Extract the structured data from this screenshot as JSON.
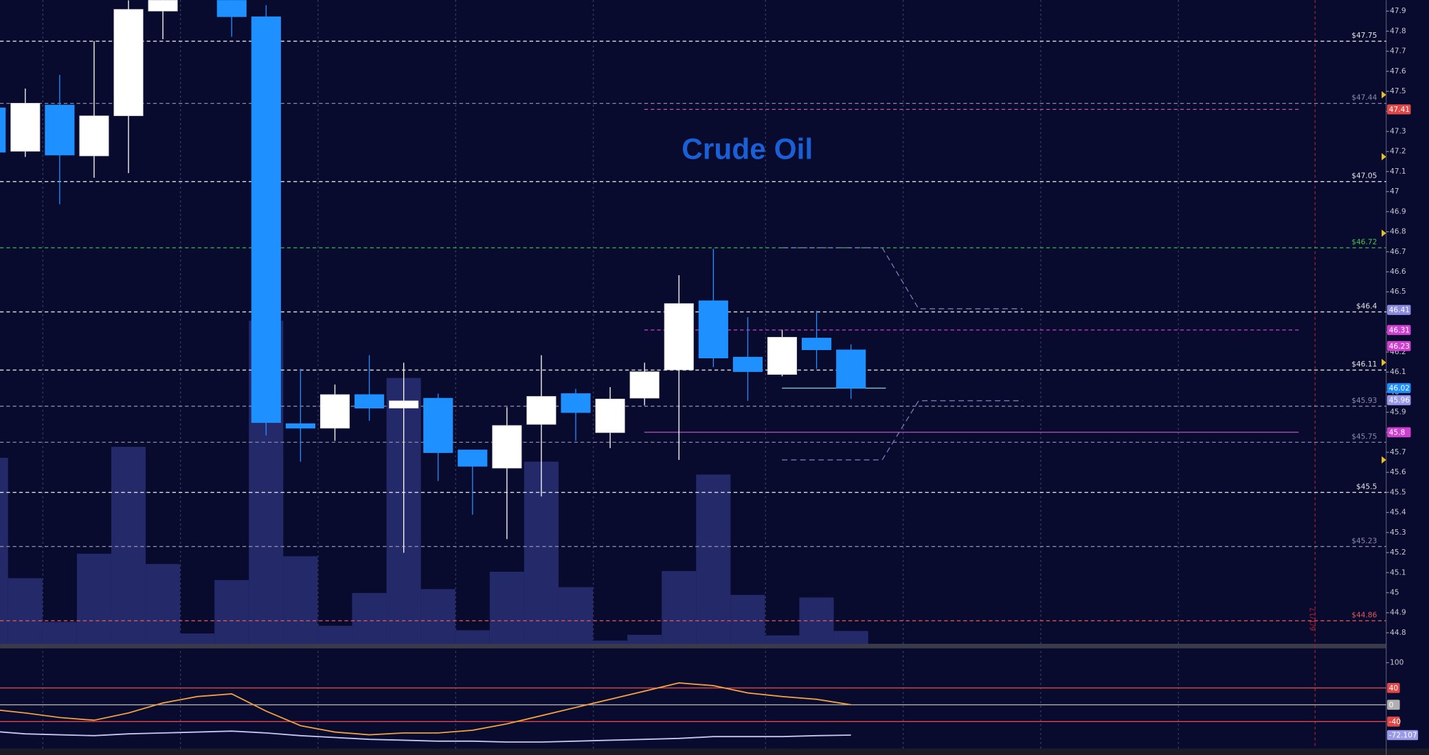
{
  "chart_data": {
    "type": "candlestick",
    "title": "Crude Oil",
    "categories": [
      null,
      null,
      null,
      null,
      null,
      null,
      null,
      null,
      null,
      null,
      null,
      null,
      null,
      null,
      null,
      null,
      null,
      null,
      null,
      null,
      null,
      null,
      null,
      null,
      null,
      null
    ],
    "open": [
      47.418,
      47.201,
      47.432,
      47.178,
      47.378,
      47.9,
      null,
      48.0,
      47.872,
      45.843,
      45.82,
      45.988,
      45.92,
      45.97,
      45.712,
      45.621,
      45.839,
      45.993,
      45.798,
      45.97,
      46.111,
      46.456,
      46.175,
      46.088,
      46.27,
      46.211
    ],
    "high": [
      47.42,
      47.514,
      47.582,
      47.75,
      47.954,
      48.05,
      null,
      48.05,
      47.93,
      46.116,
      46.038,
      46.184,
      46.147,
      45.993,
      45.712,
      45.925,
      46.184,
      46.016,
      46.025,
      46.147,
      46.583,
      46.715,
      46.374,
      46.311,
      46.406,
      46.238
    ],
    "low": [
      47.19,
      47.173,
      46.937,
      47.069,
      47.092,
      47.76,
      null,
      47.772,
      45.784,
      45.653,
      45.757,
      45.857,
      45.199,
      45.557,
      45.389,
      45.267,
      45.48,
      45.757,
      45.721,
      45.934,
      45.662,
      46.125,
      45.957,
      46.079,
      46.116,
      45.966
    ],
    "close": [
      47.196,
      47.441,
      47.182,
      47.378,
      47.909,
      48.0,
      null,
      47.872,
      45.848,
      45.82,
      45.988,
      45.92,
      45.957,
      45.698,
      45.63,
      45.834,
      45.979,
      45.898,
      45.966,
      46.102,
      46.442,
      46.17,
      46.102,
      46.274,
      46.211,
      46.02
    ],
    "up_color": "#ffffff",
    "down_color": "#1e90ff",
    "ylim": [
      44.745,
      47.955
    ],
    "yticks": [
      44.8,
      44.9,
      45,
      45.1,
      45.2,
      45.3,
      45.4,
      45.5,
      45.6,
      45.7,
      45.8,
      45.9,
      46,
      46.1,
      46.2,
      46.3,
      46.4,
      46.5,
      46.6,
      46.7,
      46.8,
      46.9,
      47,
      47.1,
      47.2,
      47.3,
      47.4,
      47.5,
      47.6,
      47.7,
      47.8,
      47.9
    ],
    "grid": true,
    "volume": {
      "ylim": [
        0,
        100
      ],
      "color": "#24296a",
      "values": [
        28.9,
        10.2,
        3.4,
        14.0,
        30.6,
        12.4,
        1.6,
        9.9,
        50.2,
        13.6,
        2.8,
        7.9,
        41.3,
        8.5,
        2.1,
        11.2,
        28.3,
        8.8,
        0.5,
        1.4,
        11.3,
        26.3,
        7.6,
        1.3,
        7.2,
        2.0
      ]
    },
    "levels": [
      {
        "value": 47.75,
        "label": "$47.75",
        "color": "#e6e6e6"
      },
      {
        "value": 47.44,
        "label": "$47.44",
        "color": "#8c8ca8"
      },
      {
        "value": 47.05,
        "label": "$47.05",
        "color": "#e6e6e6"
      },
      {
        "value": 46.72,
        "label": "$46.72",
        "color": "#3fbf4f"
      },
      {
        "value": 46.4,
        "label": "$46.4",
        "color": "#e6e6e6"
      },
      {
        "value": 46.11,
        "label": "$46.11",
        "color": "#e6e6e6"
      },
      {
        "value": 45.93,
        "label": "$45.93",
        "color": "#8c8ca8"
      },
      {
        "value": 45.75,
        "label": "$45.75",
        "color": "#8c8ca8"
      },
      {
        "value": 45.5,
        "label": "$45.5",
        "color": "#e6e6e6"
      },
      {
        "value": 45.23,
        "label": "$45.23",
        "color": "#8c8ca8"
      },
      {
        "value": 44.86,
        "label": "$44.86",
        "color": "#e05a5a"
      }
    ],
    "tags": [
      {
        "value": 47.41,
        "color": "#e04848",
        "line": "dashed",
        "line_color": "#c06090"
      },
      {
        "value": 46.41,
        "color": "#8a8ae0"
      },
      {
        "value": 46.31,
        "color": "#d040d0",
        "line": "dashed",
        "line_color": "#d040d0"
      },
      {
        "value": 46.23,
        "color": "#d040d0"
      },
      {
        "value": 46.02,
        "color": "#1e90ff",
        "line": "solid",
        "line_color": "#80e0e0"
      },
      {
        "value": 45.96,
        "color": "#9a9ae8"
      },
      {
        "value": 45.8,
        "color": "#d040d0",
        "line": "solid",
        "line_color": "#c050c0"
      }
    ],
    "date_marker": {
      "label": "6/1/17",
      "color": "#b02030"
    },
    "oscillator": {
      "type": "line",
      "ylim": [
        -104,
        134
      ],
      "yticks": [
        100
      ],
      "levels": [
        {
          "value": 40,
          "color": "#e04848"
        },
        {
          "value": 0,
          "color": "#b0b0b0"
        },
        {
          "value": -40,
          "color": "#e04848"
        }
      ],
      "series": [
        {
          "color": "#f0a040",
          "values": [
            -10.8,
            -19.5,
            -30.3,
            -36.8,
            -19.5,
            4.3,
            19.5,
            25.9,
            -15.1,
            -49.7,
            -64.9,
            -71.4,
            -67.0,
            -67.0,
            -60.5,
            -45.4,
            -25.9,
            -6.5,
            13.0,
            32.4,
            51.9,
            45.4,
            28.1,
            19.5,
            13.0,
            0
          ]
        },
        {
          "color": "#c8c8f0",
          "values": [
            -62.7,
            -69.2,
            -71.4,
            -73.5,
            -69.2,
            -67.0,
            -64.9,
            -62.7,
            -67.0,
            -73.5,
            -77.8,
            -82.2,
            -84.3,
            -86.5,
            -86.5,
            -88.6,
            -88.6,
            -86.5,
            -84.3,
            -82.2,
            -80.0,
            -75.7,
            -75.7,
            -75.7,
            -73.5,
            -72.107
          ]
        }
      ],
      "tag_color": "#9a9ae8"
    }
  }
}
